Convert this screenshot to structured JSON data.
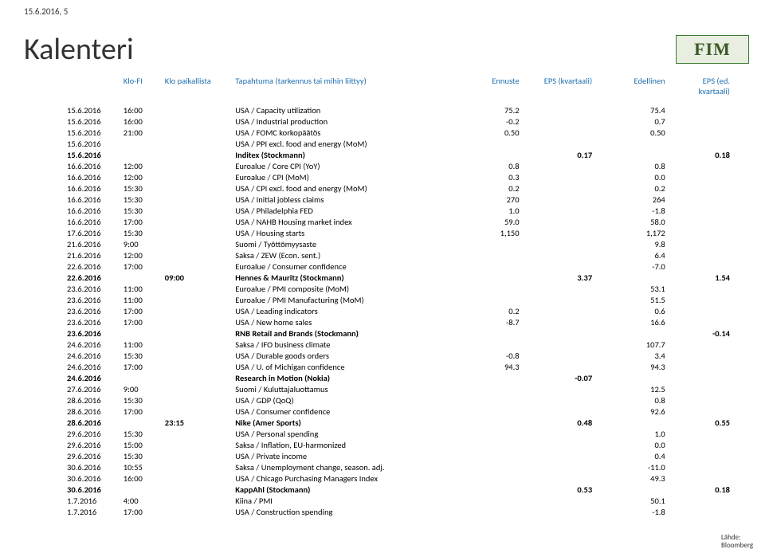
{
  "header_date": "15.6.2016, 5",
  "title": "Kalenteri",
  "logo_text": "FIM",
  "columns": [
    "",
    "Klo-FI",
    "Klo paikallista",
    "Tapahtuma (tarkennus tai mihin liittyy)",
    "Ennuste",
    "EPS (kvartaali)",
    "Edellinen",
    "EPS (ed. kvartaali)"
  ],
  "source": "Lähde:\nBloomberg",
  "rows": [
    {
      "d": "15.6.2016",
      "fi": "16:00",
      "pk": "",
      "ev": "USA / Capacity utilization",
      "en": "75.2",
      "eps": "",
      "ed": "75.4",
      "ek": ""
    },
    {
      "d": "15.6.2016",
      "fi": "16:00",
      "pk": "",
      "ev": "USA / Industrial production",
      "en": "-0.2",
      "eps": "",
      "ed": "0.7",
      "ek": ""
    },
    {
      "d": "15.6.2016",
      "fi": "21:00",
      "pk": "",
      "ev": "USA / FOMC korkopäätös",
      "en": "0.50",
      "eps": "",
      "ed": "0.50",
      "ek": ""
    },
    {
      "d": "15.6.2016",
      "fi": "",
      "pk": "",
      "ev": "USA / PPI excl. food and energy (MoM)",
      "en": "",
      "eps": "",
      "ed": "",
      "ek": ""
    },
    {
      "d": "15.6.2016",
      "fi": "",
      "pk": "",
      "ev": "Inditex  (Stockmann)",
      "en": "",
      "eps": "0.17",
      "ed": "",
      "ek": "0.18",
      "stock": true
    },
    {
      "d": "16.6.2016",
      "fi": "12:00",
      "pk": "",
      "ev": "Euroalue / Core CPI (YoY)",
      "en": "0.8",
      "eps": "",
      "ed": "0.8",
      "ek": ""
    },
    {
      "d": "16.6.2016",
      "fi": "12:00",
      "pk": "",
      "ev": "Euroalue / CPI (MoM)",
      "en": "0.3",
      "eps": "",
      "ed": "0.0",
      "ek": ""
    },
    {
      "d": "16.6.2016",
      "fi": "15:30",
      "pk": "",
      "ev": "USA / CPI excl. food and energy (MoM)",
      "en": "0.2",
      "eps": "",
      "ed": "0.2",
      "ek": ""
    },
    {
      "d": "16.6.2016",
      "fi": "15:30",
      "pk": "",
      "ev": "USA / Initial jobless claims",
      "en": "270",
      "eps": "",
      "ed": "264",
      "ek": ""
    },
    {
      "d": "16.6.2016",
      "fi": "15:30",
      "pk": "",
      "ev": "USA / Philadelphia FED",
      "en": "1.0",
      "eps": "",
      "ed": "-1.8",
      "ek": ""
    },
    {
      "d": "16.6.2016",
      "fi": "17:00",
      "pk": "",
      "ev": "USA / NAHB Housing market index",
      "en": "59.0",
      "eps": "",
      "ed": "58.0",
      "ek": ""
    },
    {
      "d": "17.6.2016",
      "fi": "15:30",
      "pk": "",
      "ev": "USA / Housing starts",
      "en": "1,150",
      "eps": "",
      "ed": "1,172",
      "ek": ""
    },
    {
      "d": "21.6.2016",
      "fi": "9:00",
      "pk": "",
      "ev": "Suomi / Työttömyysaste",
      "en": "",
      "eps": "",
      "ed": "9.8",
      "ek": ""
    },
    {
      "d": "21.6.2016",
      "fi": "12:00",
      "pk": "",
      "ev": "Saksa / ZEW (Econ. sent.)",
      "en": "",
      "eps": "",
      "ed": "6.4",
      "ek": ""
    },
    {
      "d": "22.6.2016",
      "fi": "17:00",
      "pk": "",
      "ev": "Euroalue / Consumer confidence",
      "en": "",
      "eps": "",
      "ed": "-7.0",
      "ek": ""
    },
    {
      "d": "22.6.2016",
      "fi": "",
      "pk": "09:00",
      "ev": "Hennes & Mauritz  (Stockmann)",
      "en": "",
      "eps": "3.37",
      "ed": "",
      "ek": "1.54",
      "stock": true
    },
    {
      "d": "23.6.2016",
      "fi": "11:00",
      "pk": "",
      "ev": "Euroalue / PMI composite (MoM)",
      "en": "",
      "eps": "",
      "ed": "53.1",
      "ek": ""
    },
    {
      "d": "23.6.2016",
      "fi": "11:00",
      "pk": "",
      "ev": "Euroalue / PMI Manufacturing (MoM)",
      "en": "",
      "eps": "",
      "ed": "51.5",
      "ek": ""
    },
    {
      "d": "23.6.2016",
      "fi": "17:00",
      "pk": "",
      "ev": "USA / Leading indicators",
      "en": "0.2",
      "eps": "",
      "ed": "0.6",
      "ek": ""
    },
    {
      "d": "23.6.2016",
      "fi": "17:00",
      "pk": "",
      "ev": "USA / New home sales",
      "en": "-8.7",
      "eps": "",
      "ed": "16.6",
      "ek": ""
    },
    {
      "d": "23.6.2016",
      "fi": "",
      "pk": "",
      "ev": "RNB Retail and Brands  (Stockmann)",
      "en": "",
      "eps": "",
      "ed": "",
      "ek": "-0.14",
      "stock": true
    },
    {
      "d": "24.6.2016",
      "fi": "11:00",
      "pk": "",
      "ev": "Saksa / IFO business climate",
      "en": "",
      "eps": "",
      "ed": "107.7",
      "ek": ""
    },
    {
      "d": "24.6.2016",
      "fi": "15:30",
      "pk": "",
      "ev": "USA / Durable goods orders",
      "en": "-0.8",
      "eps": "",
      "ed": "3.4",
      "ek": ""
    },
    {
      "d": "24.6.2016",
      "fi": "17:00",
      "pk": "",
      "ev": "USA / U. of Michigan confidence",
      "en": "94.3",
      "eps": "",
      "ed": "94.3",
      "ek": ""
    },
    {
      "d": "24.6.2016",
      "fi": "",
      "pk": "",
      "ev": "Research in Motion  (Nokia)",
      "en": "",
      "eps": "-0.07",
      "ed": "",
      "ek": "",
      "stock": true
    },
    {
      "d": "27.6.2016",
      "fi": "9:00",
      "pk": "",
      "ev": "Suomi / Kuluttajaluottamus",
      "en": "",
      "eps": "",
      "ed": "12.5",
      "ek": ""
    },
    {
      "d": "28.6.2016",
      "fi": "15:30",
      "pk": "",
      "ev": "USA / GDP (QoQ)",
      "en": "",
      "eps": "",
      "ed": "0.8",
      "ek": ""
    },
    {
      "d": "28.6.2016",
      "fi": "17:00",
      "pk": "",
      "ev": "USA / Consumer confidence",
      "en": "",
      "eps": "",
      "ed": "92.6",
      "ek": ""
    },
    {
      "d": "28.6.2016",
      "fi": "",
      "pk": "23:15",
      "ev": "Nike  (Amer Sports)",
      "en": "",
      "eps": "0.48",
      "ed": "",
      "ek": "0.55",
      "stock": true
    },
    {
      "d": "29.6.2016",
      "fi": "15:30",
      "pk": "",
      "ev": "USA / Personal spending",
      "en": "",
      "eps": "",
      "ed": "1.0",
      "ek": ""
    },
    {
      "d": "29.6.2016",
      "fi": "15:00",
      "pk": "",
      "ev": "Saksa / Inflation, EU-harmonized",
      "en": "",
      "eps": "",
      "ed": "0.0",
      "ek": ""
    },
    {
      "d": "29.6.2016",
      "fi": "15:30",
      "pk": "",
      "ev": "USA / Private income",
      "en": "",
      "eps": "",
      "ed": "0.4",
      "ek": ""
    },
    {
      "d": "30.6.2016",
      "fi": "10:55",
      "pk": "",
      "ev": "Saksa / Unemployment change, season. adj.",
      "en": "",
      "eps": "",
      "ed": "-11.0",
      "ek": ""
    },
    {
      "d": "30.6.2016",
      "fi": "16:00",
      "pk": "",
      "ev": "USA / Chicago Purchasing Managers Index",
      "en": "",
      "eps": "",
      "ed": "49.3",
      "ek": ""
    },
    {
      "d": "30.6.2016",
      "fi": "",
      "pk": "",
      "ev": "KappAhl  (Stockmann)",
      "en": "",
      "eps": "0.53",
      "ed": "",
      "ek": "0.18",
      "stock": true
    },
    {
      "d": "1.7.2016",
      "fi": "4:00",
      "pk": "",
      "ev": "Kiina / PMI",
      "en": "",
      "eps": "",
      "ed": "50.1",
      "ek": ""
    },
    {
      "d": "1.7.2016",
      "fi": "17:00",
      "pk": "",
      "ev": "USA / Construction spending",
      "en": "",
      "eps": "",
      "ed": "-1.8",
      "ek": ""
    }
  ]
}
